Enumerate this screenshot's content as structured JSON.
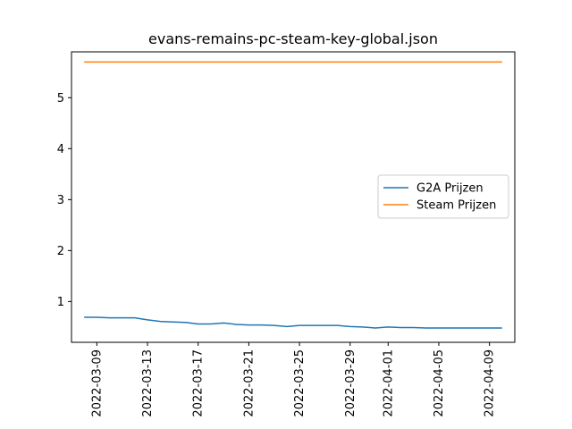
{
  "chart_data": {
    "type": "line",
    "title": "evans-remains-pc-steam-key-global.json",
    "xlabel": "",
    "ylabel": "",
    "xlim": [
      "2022-03-07",
      "2022-04-11"
    ],
    "ylim": [
      0.2,
      5.9
    ],
    "x_ticks": [
      "2022-03-09",
      "2022-03-13",
      "2022-03-17",
      "2022-03-21",
      "2022-03-25",
      "2022-03-29",
      "2022-04-01",
      "2022-04-05",
      "2022-04-09"
    ],
    "y_ticks": [
      "1",
      "2",
      "3",
      "4",
      "5"
    ],
    "grid": false,
    "legend_position": "center-right",
    "series": [
      {
        "name": "G2A Prijzen",
        "color": "#1f77b4",
        "points": [
          [
            "2022-03-08",
            0.69
          ],
          [
            "2022-03-09",
            0.69
          ],
          [
            "2022-03-10",
            0.68
          ],
          [
            "2022-03-11",
            0.68
          ],
          [
            "2022-03-12",
            0.68
          ],
          [
            "2022-03-13",
            0.64
          ],
          [
            "2022-03-14",
            0.61
          ],
          [
            "2022-03-15",
            0.6
          ],
          [
            "2022-03-16",
            0.59
          ],
          [
            "2022-03-17",
            0.56
          ],
          [
            "2022-03-18",
            0.56
          ],
          [
            "2022-03-19",
            0.58
          ],
          [
            "2022-03-20",
            0.55
          ],
          [
            "2022-03-21",
            0.54
          ],
          [
            "2022-03-22",
            0.54
          ],
          [
            "2022-03-23",
            0.53
          ],
          [
            "2022-03-24",
            0.51
          ],
          [
            "2022-03-25",
            0.53
          ],
          [
            "2022-03-26",
            0.53
          ],
          [
            "2022-03-27",
            0.53
          ],
          [
            "2022-03-28",
            0.53
          ],
          [
            "2022-03-29",
            0.51
          ],
          [
            "2022-03-30",
            0.5
          ],
          [
            "2022-03-31",
            0.48
          ],
          [
            "2022-04-01",
            0.5
          ],
          [
            "2022-04-02",
            0.49
          ],
          [
            "2022-04-03",
            0.49
          ],
          [
            "2022-04-04",
            0.48
          ],
          [
            "2022-04-05",
            0.48
          ],
          [
            "2022-04-06",
            0.48
          ],
          [
            "2022-04-07",
            0.48
          ],
          [
            "2022-04-08",
            0.48
          ],
          [
            "2022-04-09",
            0.48
          ],
          [
            "2022-04-10",
            0.48
          ]
        ]
      },
      {
        "name": "Steam Prijzen",
        "color": "#ff7f0e",
        "points": [
          [
            "2022-03-08",
            5.7
          ],
          [
            "2022-04-10",
            5.7
          ]
        ]
      }
    ]
  }
}
